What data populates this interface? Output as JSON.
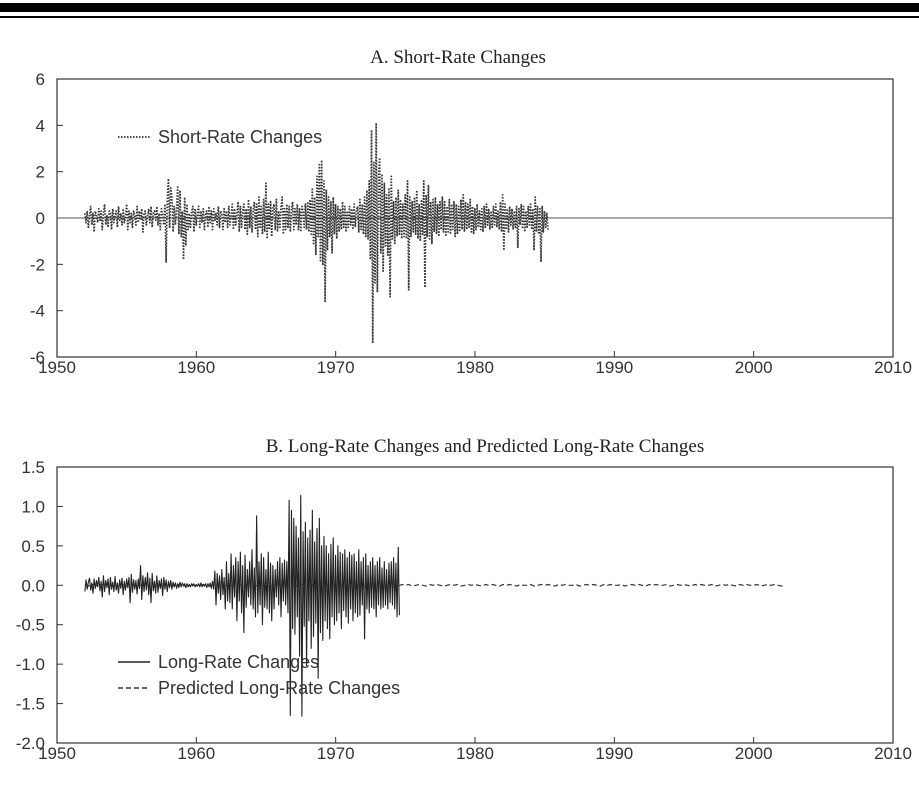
{
  "chart_data": [
    {
      "type": "line",
      "title": "A. Short-Rate Changes",
      "xlabel": "",
      "ylabel": "",
      "xlim": [
        1950,
        2010
      ],
      "ylim": [
        -6,
        6
      ],
      "x_ticks": [
        "1950",
        "1960",
        "1970",
        "1980",
        "1990",
        "2000",
        "2010"
      ],
      "y_ticks": [
        "6",
        "4",
        "2",
        "0",
        "-2",
        "-4",
        "-6"
      ],
      "grid": false,
      "zero_line": true,
      "legend_position": "top-left",
      "series": [
        {
          "name": "Short-Rate Changes",
          "style": "dotted",
          "color": "#333333",
          "x_start": 1952.0,
          "x_step": 0.0833,
          "values": [
            0.2,
            -0.2,
            0.3,
            -0.4,
            0.1,
            0.5,
            -0.3,
            0.2,
            -0.6,
            0.3,
            0.1,
            -0.2,
            0.4,
            -0.1,
            0.3,
            -0.5,
            0.2,
            0.6,
            -0.3,
            0.1,
            -0.4,
            0.3,
            0.2,
            -0.5,
            0.4,
            -0.2,
            0.1,
            0.3,
            -0.4,
            0.5,
            -0.1,
            0.2,
            -0.3,
            0.4,
            -0.2,
            0.1,
            0.6,
            -0.5,
            0.3,
            -0.2,
            0.2,
            -0.4,
            0.3,
            0.1,
            -0.3,
            0.5,
            -0.2,
            0.3,
            -0.1,
            0.4,
            -0.6,
            0.2,
            0.3,
            -0.3,
            0.1,
            0.4,
            -0.2,
            0.5,
            -0.4,
            0.2,
            0.3,
            -0.1,
            0.5,
            -0.3,
            0.2,
            -0.5,
            0.4,
            0.1,
            -0.3,
            0.6,
            -1.9,
            0.8,
            1.7,
            -0.4,
            1.3,
            0.9,
            -0.6,
            0.5,
            -0.3,
            0.4,
            1.4,
            -0.7,
            1.2,
            -0.8,
            0.3,
            -1.8,
            0.9,
            -1.2,
            0.6,
            -0.5,
            0.2,
            -0.4,
            0.3,
            0.5,
            -0.6,
            0.4,
            -0.3,
            0.2,
            0.5,
            -0.4,
            0.3,
            -0.2,
            0.4,
            -0.5,
            0.2,
            0.3,
            -0.4,
            0.5,
            -0.2,
            0.3,
            -0.5,
            0.4,
            -0.1,
            0.2,
            -0.3,
            0.5,
            -0.4,
            0.3,
            0.2,
            -0.5,
            0.4,
            -0.2,
            0.3,
            -0.4,
            0.5,
            -0.3,
            0.1,
            0.6,
            -0.5,
            0.4,
            -0.3,
            0.2,
            0.7,
            -0.6,
            0.5,
            -0.4,
            0.3,
            0.6,
            -0.5,
            0.4,
            -0.7,
            0.8,
            -0.4,
            0.5,
            -0.6,
            0.3,
            0.7,
            -0.5,
            0.6,
            -0.8,
            0.9,
            -0.4,
            0.5,
            -0.7,
            0.8,
            -0.6,
            1.5,
            -0.9,
            0.6,
            -0.5,
            0.7,
            -0.8,
            0.4,
            0.6,
            -0.5,
            0.8,
            -0.6,
            0.3,
            -0.4,
            0.5,
            0.9,
            -0.7,
            0.4,
            -0.5,
            0.6,
            -0.4,
            0.5,
            -0.6,
            0.3,
            0.7,
            -0.5,
            0.4,
            -0.3,
            0.6,
            -0.5,
            0.4,
            -0.6,
            0.5,
            0.3,
            -0.4,
            0.6,
            -0.5,
            0.7,
            -0.6,
            0.8,
            -0.7,
            1.3,
            -1.1,
            0.9,
            -1.6,
            1.8,
            -0.8,
            2.3,
            -1.9,
            2.5,
            -2.0,
            1.6,
            -3.6,
            1.2,
            -1.4,
            0.9,
            -0.8,
            0.7,
            -1.5,
            0.9,
            -0.7,
            0.6,
            -0.9,
            0.5,
            -0.6,
            0.4,
            -0.5,
            0.7,
            -0.4,
            0.5,
            -0.6,
            0.3,
            -0.4,
            0.5,
            -0.3,
            0.4,
            -0.5,
            0.6,
            -0.4,
            0.3,
            0.5,
            -0.6,
            0.8,
            -0.5,
            0.6,
            -0.7,
            0.9,
            -0.8,
            1.2,
            -0.9,
            1.6,
            -1.8,
            3.8,
            -5.4,
            2.4,
            -2.8,
            4.1,
            -3.2,
            1.8,
            2.6,
            -1.5,
            1.9,
            -2.3,
            1.5,
            -1.2,
            1.0,
            -1.6,
            1.3,
            -3.4,
            1.8,
            -0.9,
            0.7,
            -1.1,
            0.9,
            -0.8,
            1.2,
            -0.7,
            0.8,
            -0.9,
            0.6,
            -0.8,
            1.0,
            -0.9,
            1.6,
            -3.1,
            0.9,
            -0.8,
            0.7,
            -0.6,
            0.9,
            -0.7,
            1.2,
            -0.9,
            0.6,
            -1.0,
            0.8,
            -0.7,
            1.6,
            -3.0,
            1.0,
            -0.8,
            1.4,
            -0.9,
            0.7,
            -1.1,
            0.8,
            -0.6,
            0.9,
            -0.7,
            0.6,
            -0.8,
            0.7,
            -0.5,
            0.9,
            -0.6,
            0.7,
            -0.8,
            0.5,
            -0.6,
            0.8,
            -0.7,
            0.6,
            -0.5,
            0.7,
            -0.8,
            0.6,
            -0.7,
            0.5,
            -0.6,
            0.8,
            -0.5,
            1.0,
            -0.6,
            0.7,
            -0.5,
            0.6,
            -0.4,
            0.8,
            -0.6,
            0.5,
            -0.7,
            0.4,
            -0.5,
            0.6,
            -0.4,
            0.3,
            -0.5,
            0.4,
            -0.6,
            0.5,
            -0.4,
            0.6,
            -0.3,
            0.4,
            -0.5,
            0.3,
            -0.4,
            0.5,
            -0.3,
            0.6,
            -0.4,
            0.3,
            -0.5,
            0.7,
            -0.6,
            1.0,
            -1.4,
            0.6,
            -0.5,
            0.4,
            -0.6,
            0.5,
            -0.3,
            0.4,
            -0.5,
            0.3,
            -0.4,
            0.5,
            -1.3,
            0.4,
            -0.3,
            0.6,
            -0.4,
            0.5,
            -0.6,
            0.3,
            -0.4,
            0.5,
            -0.3,
            0.6,
            -0.5,
            0.4,
            -1.4,
            0.9,
            -0.6,
            0.5,
            -0.7,
            0.4,
            -1.9,
            0.5,
            -0.6,
            0.3,
            -0.4,
            0.2,
            -0.5
          ]
        }
      ]
    },
    {
      "type": "line",
      "title": "B. Long-Rate Changes and Predicted Long-Rate Changes",
      "xlabel": "",
      "ylabel": "",
      "xlim": [
        1950,
        2010
      ],
      "ylim": [
        -2.0,
        1.5
      ],
      "x_ticks": [
        "1950",
        "1960",
        "1970",
        "1980",
        "1990",
        "2000",
        "2010"
      ],
      "y_ticks": [
        "1.5",
        "1.0",
        "0.5",
        "0.0",
        "-0.5",
        "-1.0",
        "-1.5",
        "-2.0"
      ],
      "grid": false,
      "legend_position": "bottom-left",
      "series": [
        {
          "name": "Long-Rate Changes",
          "style": "solid",
          "color": "#222222",
          "x_start": 1952.0,
          "x_step": 0.0833,
          "values": [
            -0.08,
            0.07,
            -0.05,
            0.04,
            0.09,
            -0.06,
            0.03,
            -0.1,
            0.08,
            -0.04,
            0.06,
            -0.02,
            0.1,
            -0.07,
            0.05,
            -0.15,
            0.12,
            -0.08,
            0.06,
            -0.03,
            0.08,
            -0.12,
            0.1,
            -0.05,
            0.04,
            -0.08,
            0.11,
            -0.06,
            0.03,
            -0.1,
            0.07,
            -0.04,
            0.09,
            -0.12,
            0.05,
            -0.06,
            0.08,
            -0.03,
            0.1,
            -0.22,
            0.14,
            -0.09,
            0.07,
            -0.05,
            0.06,
            -0.11,
            0.08,
            -0.04,
            0.25,
            -0.18,
            0.12,
            -0.08,
            0.1,
            -0.06,
            0.16,
            -0.12,
            0.09,
            -0.22,
            0.15,
            -0.07,
            0.05,
            -0.1,
            0.12,
            -0.09,
            0.06,
            -0.04,
            0.08,
            -0.13,
            0.1,
            -0.05,
            0.07,
            -0.08,
            0.05,
            -0.03,
            0.06,
            -0.05,
            0.04,
            -0.02,
            0.03,
            -0.04,
            0.02,
            -0.03,
            0.04,
            -0.02,
            0.03,
            -0.01,
            0.02,
            -0.03,
            0.02,
            -0.02,
            0.01,
            -0.02,
            0.02,
            -0.01,
            0.02,
            -0.02,
            0.01,
            -0.01,
            0.02,
            -0.02,
            0.03,
            -0.02,
            0.01,
            -0.01,
            0.02,
            -0.03,
            0.02,
            -0.02,
            0.03,
            -0.04,
            0.05,
            -0.05,
            0.18,
            -0.25,
            0.15,
            -0.1,
            0.12,
            -0.18,
            0.2,
            -0.12,
            0.1,
            -0.3,
            0.3,
            -0.2,
            0.15,
            -0.22,
            0.4,
            -0.3,
            0.25,
            -0.15,
            0.35,
            -0.45,
            0.3,
            -0.2,
            0.42,
            -0.35,
            0.25,
            -0.6,
            0.38,
            -0.28,
            0.2,
            -0.15,
            0.3,
            -0.25,
            0.45,
            -0.3,
            0.22,
            -0.4,
            0.88,
            -0.35,
            0.3,
            -0.25,
            0.4,
            -0.5,
            0.35,
            -0.28,
            0.2,
            -0.3,
            0.42,
            -0.35,
            0.28,
            -0.45,
            0.25,
            -0.3,
            0.2,
            -0.15,
            0.3,
            -0.25,
            0.35,
            -0.4,
            0.28,
            -0.2,
            0.32,
            -0.25,
            0.3,
            -0.35,
            1.08,
            -1.65,
            0.95,
            -0.55,
            0.85,
            -0.62,
            0.75,
            -0.4,
            0.6,
            -0.9,
            1.14,
            -1.66,
            0.68,
            -0.52,
            0.8,
            -1.02,
            0.6,
            -0.45,
            0.7,
            -0.8,
            0.95,
            -0.65,
            0.55,
            -0.48,
            0.72,
            -1.18,
            0.85,
            -0.6,
            0.5,
            -0.7,
            0.62,
            -0.45,
            0.5,
            -0.55,
            0.4,
            -0.68,
            0.52,
            -0.4,
            0.6,
            -0.5,
            0.38,
            -0.45,
            0.5,
            -0.35,
            0.42,
            -0.55,
            0.4,
            -0.32,
            0.45,
            -0.4,
            0.35,
            -0.48,
            0.42,
            -0.3,
            0.38,
            -0.45,
            0.4,
            -0.35,
            0.3,
            -0.4,
            0.45,
            -0.38,
            0.3,
            -0.25,
            0.35,
            -0.68,
            0.4,
            -0.3,
            0.25,
            -0.35,
            0.3,
            -0.28,
            0.35,
            -0.3,
            0.25,
            -0.4,
            0.3,
            -0.25,
            0.35,
            -0.3,
            0.22,
            -0.28,
            0.3,
            -0.25,
            0.2,
            -0.3,
            0.28,
            -0.22,
            0.3,
            -0.25,
            0.35,
            -0.3,
            0.28,
            -0.4,
            0.48,
            -0.38
          ]
        },
        {
          "name": "Predicted Long-Rate Changes",
          "style": "dashed",
          "color": "#333333",
          "x_start": 1952.0,
          "x_step": 0.25,
          "values": [
            0.01,
            -0.01,
            0.01,
            0.0,
            -0.01,
            0.01,
            0.0,
            -0.01,
            0.01,
            -0.01,
            0.0,
            0.01,
            -0.01,
            0.0,
            0.01,
            -0.01,
            0.0,
            0.01,
            0.0,
            -0.01,
            0.0,
            0.01,
            -0.01,
            0.0,
            0.01,
            0.0,
            -0.01,
            0.01,
            0.0,
            -0.01,
            0.0,
            0.01,
            -0.01,
            0.0,
            0.01,
            0.0,
            -0.01,
            0.0,
            0.01,
            0.0,
            -0.01,
            0.01,
            0.0,
            -0.01,
            0.0,
            0.01,
            -0.01,
            0.0,
            0.01,
            0.0,
            -0.01,
            0.0,
            0.01,
            0.0,
            -0.01,
            0.01,
            0.0,
            -0.01,
            0.0,
            0.01,
            0.0,
            -0.01,
            0.01,
            0.0,
            -0.01,
            0.0,
            0.01,
            0.0,
            -0.01,
            0.01,
            0.0,
            0.0,
            -0.01,
            0.0,
            0.01,
            0.0,
            -0.01,
            0.0,
            0.01,
            0.0,
            -0.02,
            0.01,
            0.02,
            -0.01,
            0.01,
            0.0,
            -0.01,
            0.01,
            0.02,
            0.0,
            -0.01,
            0.01,
            0.0,
            0.01,
            -0.01,
            0.0,
            0.01,
            0.0,
            -0.01,
            0.01,
            0.0,
            0.01,
            0.0,
            -0.01,
            0.0,
            0.01,
            0.0,
            0.01,
            -0.01,
            0.0,
            0.01,
            0.0,
            0.01,
            0.0,
            -0.01,
            0.01,
            0.0,
            0.01,
            0.0,
            -0.01,
            0.01,
            0.0,
            0.01,
            0.0,
            -0.01,
            0.01,
            0.0,
            0.0,
            0.01,
            -0.01,
            0.0,
            0.01,
            0.0,
            0.01,
            0.0,
            -0.01,
            0.01,
            0.0,
            0.01,
            0.0,
            0.0,
            0.01,
            -0.01,
            0.0,
            0.01,
            0.0,
            0.01,
            0.0,
            -0.01,
            0.01,
            0.0,
            0.01,
            0.0,
            0.0,
            0.01,
            -0.01,
            0.0,
            0.01,
            0.0,
            0.01,
            0.0,
            -0.01,
            0.01,
            0.0,
            0.01,
            0.0,
            0.0,
            0.01,
            -0.01,
            0.0,
            0.01,
            0.0,
            0.01,
            0.0,
            -0.01,
            0.01,
            0.0,
            0.01,
            0.0,
            0.0,
            0.01,
            -0.01,
            0.0,
            0.01,
            0.0,
            0.01,
            0.0,
            -0.01,
            0.01,
            0.0,
            0.01,
            0.0,
            0.0,
            0.01,
            -0.01,
            0.0,
            0.01,
            0.0,
            0.01,
            0.0,
            -0.01,
            0.01
          ]
        }
      ]
    }
  ]
}
